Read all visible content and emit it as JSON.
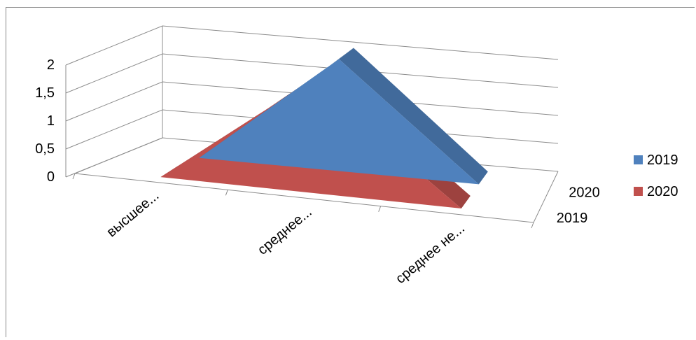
{
  "chart_data": {
    "type": "area",
    "title": "",
    "xlabel": "",
    "ylabel": "",
    "ylim": [
      0,
      2
    ],
    "y_ticks": [
      "0",
      "0,5",
      "1",
      "1,5",
      "2"
    ],
    "categories": [
      "высшее...",
      "среднее...",
      "среднее не..."
    ],
    "depth_labels": [
      "2020",
      "2019"
    ],
    "grid": true,
    "legend_position": "right",
    "series": [
      {
        "name": "2019",
        "values": [
          0,
          2,
          0
        ],
        "color": "#4f81bd"
      },
      {
        "name": "2020",
        "values": [
          0,
          2,
          0
        ],
        "color": "#c0504d"
      }
    ]
  }
}
